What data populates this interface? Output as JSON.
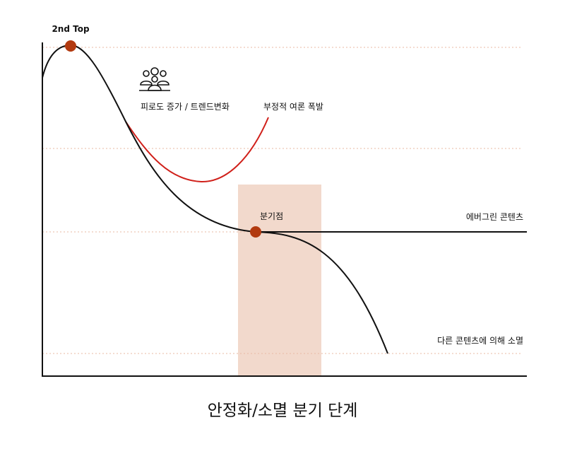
{
  "title": "안정화/소멸 분기 단계",
  "labels": {
    "peak": "2nd Top",
    "fatigue": "피로도 증가 / 트렌드변화",
    "backlash": "부정적 여론 폭발",
    "branch_point": "분기점",
    "evergreen": "에버그린 콘텐츠",
    "extinction": "다른 콘텐츠에 의해 소멸"
  },
  "icons": {
    "audience": "people-group-icon"
  },
  "colors": {
    "main_curve": "#111111",
    "backlash_curve": "#d0201a",
    "marker": "#b23a10",
    "highlight_band": "#f2d9cc",
    "guide_line": "#e8b9a3"
  }
}
